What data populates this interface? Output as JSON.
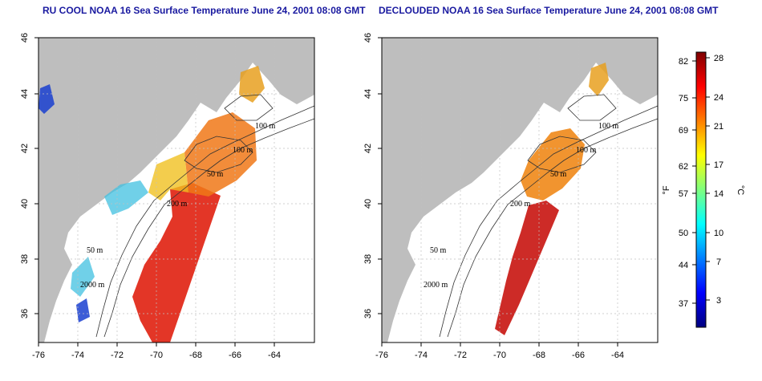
{
  "panels": [
    {
      "title": "RU COOL NOAA 16 Sea Surface Temperature June 24, 2001 08:08 GMT",
      "x_ticks": [
        "-76",
        "-74",
        "-72",
        "-70",
        "-68",
        "-66",
        "-64"
      ],
      "y_ticks": [
        "46",
        "44",
        "42",
        "40",
        "38",
        "36"
      ],
      "contour_labels": [
        "100 m",
        "100 m",
        "50 m",
        "200 m",
        "50 m",
        "2000 m"
      ]
    },
    {
      "title": "DECLOUDED NOAA 16 Sea Surface Temperature June 24, 2001 08:08 GMT",
      "x_ticks": [
        "-76",
        "-74",
        "-72",
        "-70",
        "-68",
        "-66",
        "-64"
      ],
      "y_ticks": [
        "46",
        "44",
        "42",
        "40",
        "38",
        "36"
      ],
      "contour_labels": [
        "100 m",
        "100 m",
        "50 m",
        "200 m",
        "50 m",
        "2000 m"
      ]
    }
  ],
  "colorbar": {
    "fahrenheit_label": "°F",
    "celsius_label": "°C",
    "fahrenheit_ticks": [
      "82",
      "75",
      "69",
      "62",
      "57",
      "50",
      "44",
      "37"
    ],
    "celsius_ticks": [
      "28",
      "24",
      "21",
      "17",
      "14",
      "10",
      "7",
      "3"
    ],
    "colors": [
      "#00007f",
      "#0000ff",
      "#007fff",
      "#00ffff",
      "#7fff7f",
      "#ffff00",
      "#ff7f00",
      "#ff0000",
      "#7f0000"
    ]
  }
}
